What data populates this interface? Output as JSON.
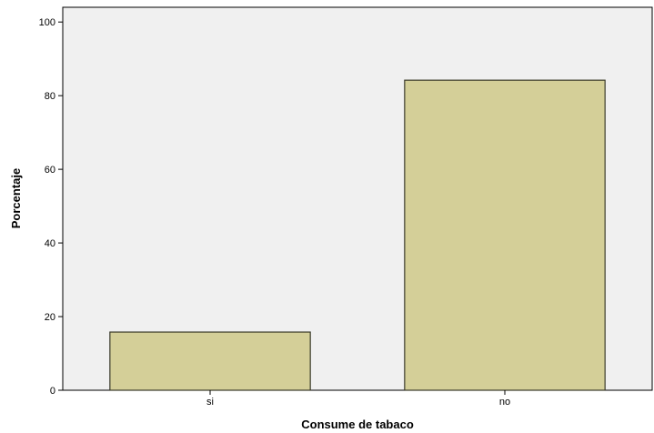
{
  "chart_data": {
    "type": "bar",
    "categories": [
      "si",
      "no"
    ],
    "values": [
      15.8,
      84.2
    ],
    "xlabel": "Consume de tabaco",
    "ylabel": "Porcentaje",
    "ylim": [
      0,
      104
    ],
    "yticks": [
      0,
      20,
      40,
      60,
      80,
      100
    ],
    "grid": false,
    "legend": "none",
    "colors": {
      "bar_fill": "#d4cf98",
      "bar_stroke": "#3a3a2a",
      "plot_background": "#f0f0f0",
      "axis": "#000000"
    }
  }
}
